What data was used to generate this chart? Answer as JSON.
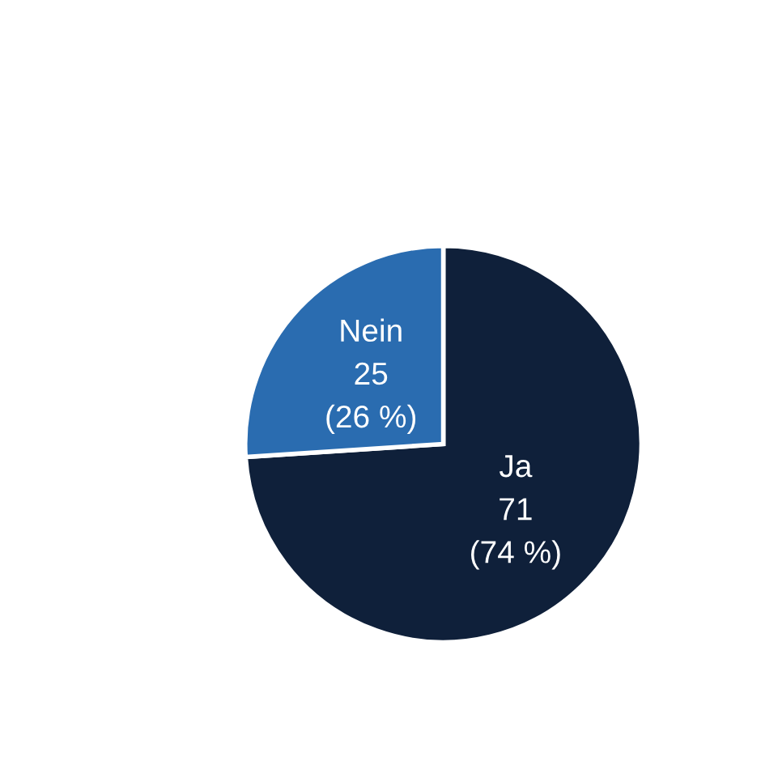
{
  "chart_data": {
    "type": "pie",
    "categories": [
      "Ja",
      "Nein"
    ],
    "values": [
      71,
      25
    ],
    "colors": [
      "#0f203a",
      "#2a6cb0"
    ],
    "value_labels": [
      "71\n(74 %)",
      "25\n(26 %)"
    ],
    "legend": false
  }
}
